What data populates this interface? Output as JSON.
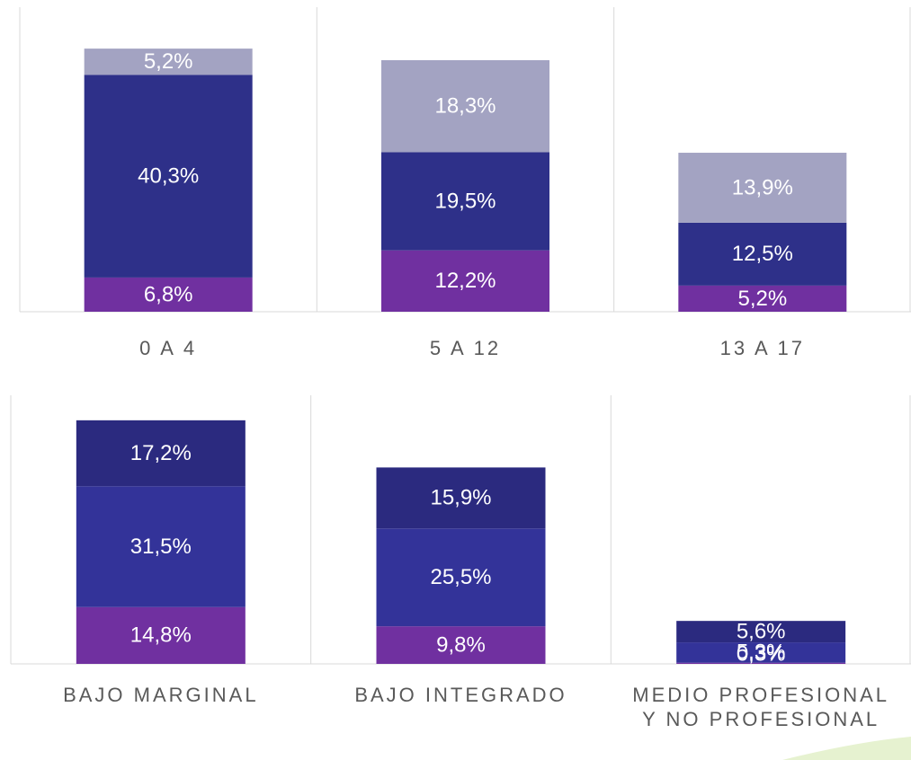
{
  "chart_data": [
    {
      "type": "bar",
      "stacked": true,
      "categories": [
        "0 A 4",
        "5 A 12",
        "13 A 17"
      ],
      "series": [
        {
          "color": "#7030a0",
          "values": [
            6.8,
            12.2,
            5.2
          ],
          "value_labels": [
            "6,8%",
            "12,2%",
            "5,2%"
          ]
        },
        {
          "color": "#2e3089",
          "values": [
            40.3,
            19.5,
            12.5
          ],
          "value_labels": [
            "40,3%",
            "19,5%",
            "12,5%"
          ]
        },
        {
          "color": "#a3a3c2",
          "values": [
            5.2,
            18.3,
            13.9
          ],
          "value_labels": [
            "5,2%",
            "18,3%",
            "13,9%"
          ]
        }
      ]
    },
    {
      "type": "bar",
      "stacked": true,
      "categories": [
        "BAJO MARGINAL",
        "BAJO INTEGRADO",
        "MEDIO PROFESIONAL Y NO PROFESIONAL"
      ],
      "series": [
        {
          "color": "#7030a0",
          "values": [
            14.8,
            9.8,
            0.3
          ],
          "value_labels": [
            "14,8%",
            "9,8%",
            "0,3%"
          ]
        },
        {
          "color": "#333399",
          "values": [
            31.5,
            25.5,
            5.3
          ],
          "value_labels": [
            "31,5%",
            "25,5%",
            "5,3%"
          ]
        },
        {
          "color": "#2b2a7f",
          "values": [
            17.2,
            15.9,
            5.6
          ],
          "value_labels": [
            "17,2%",
            "15,9%",
            "5,6%"
          ]
        }
      ]
    }
  ]
}
